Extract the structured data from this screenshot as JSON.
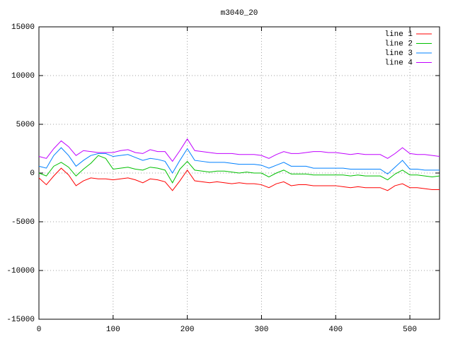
{
  "chart_data": {
    "type": "line",
    "title": "m3040_20",
    "x": [
      0,
      10,
      20,
      30,
      40,
      50,
      60,
      70,
      80,
      90,
      100,
      110,
      120,
      130,
      140,
      150,
      160,
      170,
      180,
      190,
      200,
      210,
      220,
      230,
      240,
      250,
      260,
      270,
      280,
      290,
      300,
      310,
      320,
      330,
      340,
      350,
      360,
      370,
      380,
      390,
      400,
      410,
      420,
      430,
      440,
      450,
      460,
      470,
      480,
      490,
      500,
      510,
      520,
      530,
      540
    ],
    "series": [
      {
        "name": "line 1",
        "color": "#ff0000",
        "values": [
          -500,
          -1200,
          -300,
          500,
          -200,
          -1300,
          -800,
          -500,
          -600,
          -600,
          -700,
          -600,
          -500,
          -700,
          -1000,
          -600,
          -700,
          -900,
          -1800,
          -800,
          300,
          -800,
          -900,
          -1000,
          -900,
          -1000,
          -1100,
          -1000,
          -1100,
          -1100,
          -1200,
          -1500,
          -1100,
          -900,
          -1300,
          -1200,
          -1200,
          -1300,
          -1300,
          -1300,
          -1300,
          -1400,
          -1500,
          -1400,
          -1500,
          -1500,
          -1500,
          -1800,
          -1300,
          -1100,
          -1500,
          -1500,
          -1600,
          -1700,
          -1700
        ]
      },
      {
        "name": "line 2",
        "color": "#00c000",
        "values": [
          0,
          -300,
          700,
          1100,
          600,
          -300,
          400,
          1000,
          1800,
          1500,
          400,
          500,
          600,
          400,
          300,
          600,
          500,
          300,
          -1000,
          400,
          1200,
          300,
          200,
          100,
          200,
          200,
          100,
          0,
          100,
          0,
          0,
          -400,
          0,
          300,
          -100,
          -100,
          -100,
          -200,
          -200,
          -200,
          -200,
          -200,
          -300,
          -200,
          -300,
          -300,
          -300,
          -700,
          -100,
          300,
          -200,
          -200,
          -300,
          -400,
          -300
        ]
      },
      {
        "name": "line 3",
        "color": "#0080ff",
        "values": [
          700,
          500,
          1800,
          2600,
          1800,
          700,
          1300,
          1800,
          2000,
          2000,
          1700,
          1800,
          1900,
          1600,
          1300,
          1500,
          1400,
          1200,
          0,
          1300,
          2500,
          1300,
          1200,
          1100,
          1100,
          1100,
          1000,
          900,
          900,
          900,
          800,
          500,
          800,
          1100,
          700,
          700,
          700,
          500,
          500,
          500,
          500,
          500,
          400,
          400,
          400,
          400,
          400,
          -100,
          600,
          1300,
          400,
          400,
          300,
          300,
          300
        ]
      },
      {
        "name": "line 4",
        "color": "#c000ff",
        "values": [
          1700,
          1500,
          2500,
          3300,
          2700,
          1800,
          2300,
          2200,
          2100,
          2100,
          2100,
          2300,
          2400,
          2100,
          2000,
          2400,
          2200,
          2200,
          1200,
          2300,
          3500,
          2300,
          2200,
          2100,
          2000,
          2000,
          2000,
          1900,
          1900,
          1900,
          1800,
          1500,
          1900,
          2200,
          2000,
          2000,
          2100,
          2200,
          2200,
          2100,
          2100,
          2000,
          1900,
          2000,
          1900,
          1900,
          1900,
          1500,
          2000,
          2600,
          2000,
          1900,
          1900,
          1800,
          1700
        ]
      }
    ],
    "xlim": [
      0,
      540
    ],
    "ylim": [
      -15000,
      15000
    ],
    "xticks": [
      0,
      100,
      200,
      300,
      400,
      500
    ],
    "yticks": [
      -15000,
      -10000,
      -5000,
      0,
      5000,
      10000,
      15000
    ],
    "grid": true,
    "legend": "top-right"
  }
}
